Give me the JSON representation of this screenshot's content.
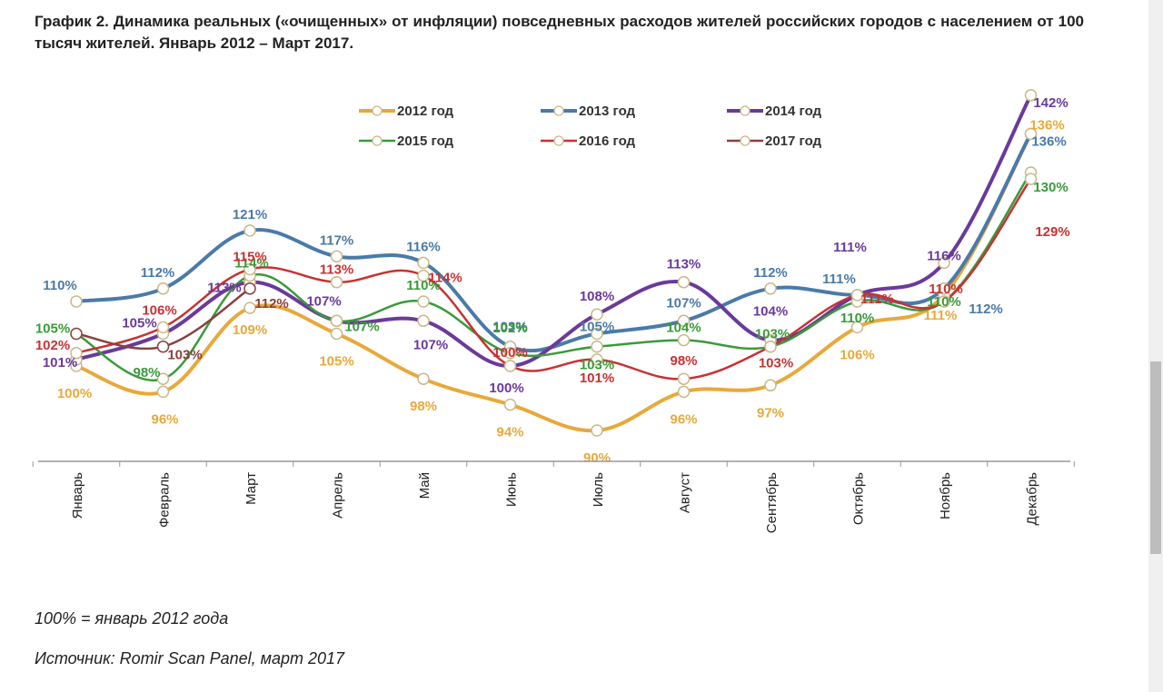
{
  "title": "График 2. Динамика реальных («очищенных» от инфляции) повседневных расходов жителей российских городов с населением от 100 тысяч жителей. Январь 2012 – Март 2017.",
  "notes": {
    "base": "100% = январь 2012 года",
    "source": "Источник: Romir Scan Panel, март 2017"
  },
  "chart_data": {
    "type": "line",
    "title": "График 2. Динамика реальных («очищенных» от инфляции) повседневных расходов жителей российских городов с населением от 100 тысяч жителей. Январь 2012 – Март 2017.",
    "xlabel": "",
    "ylabel": "",
    "ylim": [
      85,
      145
    ],
    "grid": false,
    "legend_position": "top-center",
    "categories": [
      "Январь",
      "Февраль",
      "Март",
      "Апрель",
      "Май",
      "Июнь",
      "Июль",
      "Август",
      "Сентябрь",
      "Октябрь",
      "Ноябрь",
      "Декабрь"
    ],
    "series": [
      {
        "name": "2012 год",
        "color": "#e8a93a",
        "values": [
          100,
          96,
          109,
          105,
          98,
          94,
          90,
          96,
          97,
          106,
          111,
          136
        ]
      },
      {
        "name": "2013 год",
        "color": "#4a7aa8",
        "values": [
          110,
          112,
          121,
          117,
          116,
          103,
          105,
          107,
          112,
          111,
          112,
          136
        ]
      },
      {
        "name": "2014 год",
        "color": "#6a3a9a",
        "values": [
          101,
          105,
          113,
          107,
          107,
          100,
          108,
          113,
          104,
          111,
          116,
          142
        ]
      },
      {
        "name": "2015 год",
        "color": "#3a9a3a",
        "values": [
          105,
          98,
          114,
          107,
          110,
          102,
          103,
          104,
          103,
          110,
          110,
          130
        ]
      },
      {
        "name": "2016 год",
        "color": "#c83232",
        "values": [
          102,
          106,
          115,
          113,
          114,
          100,
          101,
          98,
          103,
          111,
          110,
          129
        ]
      },
      {
        "name": "2017 год",
        "color": "#8a4040",
        "values": [
          105,
          103,
          112
        ]
      }
    ]
  }
}
